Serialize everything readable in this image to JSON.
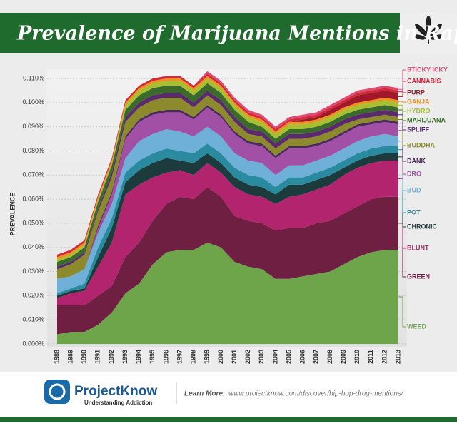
{
  "chart_data": {
    "type": "stacked-area",
    "title": "Prevalence of Marijuana Mentions in Rap Music",
    "y_label": "PREVALENCE",
    "categories": [
      "1988",
      "1989",
      "1990",
      "1991",
      "1992",
      "1993",
      "1994",
      "1995",
      "1996",
      "1997",
      "1998",
      "1999",
      "2000",
      "2001",
      "2002",
      "2003",
      "2004",
      "2005",
      "2006",
      "2007",
      "2008",
      "2009",
      "2010",
      "2011",
      "2012",
      "2013"
    ],
    "ylim": [
      0,
      0.11
    ],
    "yticks": [
      {
        "value": 0,
        "label": "0.000%"
      },
      {
        "value": 0.01,
        "label": "0.010%"
      },
      {
        "value": 0.02,
        "label": "0.020%"
      },
      {
        "value": 0.03,
        "label": "0.030%"
      },
      {
        "value": 0.04,
        "label": "0.040%"
      },
      {
        "value": 0.05,
        "label": "0.050%"
      },
      {
        "value": 0.06,
        "label": "0.060%"
      },
      {
        "value": 0.07,
        "label": "0.070%"
      },
      {
        "value": 0.08,
        "label": "0.080%"
      },
      {
        "value": 0.09,
        "label": "0.090%"
      },
      {
        "value": 0.1,
        "label": "0.100%"
      },
      {
        "value": 0.11,
        "label": "0.110%"
      }
    ],
    "grid": true,
    "series": [
      {
        "name": "WEED",
        "color": "#6fa54a",
        "values": [
          0.004,
          0.005,
          0.005,
          0.008,
          0.013,
          0.021,
          0.025,
          0.033,
          0.038,
          0.039,
          0.039,
          0.042,
          0.04,
          0.034,
          0.032,
          0.031,
          0.027,
          0.027,
          0.028,
          0.029,
          0.03,
          0.033,
          0.036,
          0.038,
          0.039,
          0.039
        ]
      },
      {
        "name": "GREEN",
        "color": "#6e1f42",
        "values": [
          0.012,
          0.011,
          0.011,
          0.012,
          0.011,
          0.015,
          0.017,
          0.018,
          0.02,
          0.022,
          0.021,
          0.023,
          0.021,
          0.019,
          0.019,
          0.019,
          0.02,
          0.021,
          0.02,
          0.021,
          0.021,
          0.021,
          0.021,
          0.022,
          0.022,
          0.022
        ]
      },
      {
        "name": "BLUNT",
        "color": "#b3246e",
        "values": [
          0.003,
          0.005,
          0.006,
          0.012,
          0.018,
          0.026,
          0.024,
          0.018,
          0.013,
          0.011,
          0.01,
          0.01,
          0.01,
          0.012,
          0.011,
          0.011,
          0.011,
          0.013,
          0.014,
          0.014,
          0.015,
          0.016,
          0.016,
          0.015,
          0.015,
          0.015
        ]
      },
      {
        "name": "CHRONIC",
        "color": "#1c3b3d",
        "values": [
          0.001,
          0.001,
          0.001,
          0.004,
          0.006,
          0.005,
          0.006,
          0.006,
          0.006,
          0.004,
          0.005,
          0.004,
          0.004,
          0.004,
          0.004,
          0.004,
          0.004,
          0.005,
          0.004,
          0.004,
          0.004,
          0.003,
          0.003,
          0.003,
          0.003,
          0.003
        ]
      },
      {
        "name": "POT",
        "color": "#2a8ba0",
        "values": [
          0.001,
          0.001,
          0.002,
          0.004,
          0.004,
          0.004,
          0.004,
          0.004,
          0.004,
          0.004,
          0.004,
          0.004,
          0.004,
          0.004,
          0.004,
          0.004,
          0.003,
          0.003,
          0.003,
          0.003,
          0.003,
          0.003,
          0.003,
          0.003,
          0.003,
          0.003
        ]
      },
      {
        "name": "BUD",
        "color": "#6eb0d8",
        "values": [
          0.006,
          0.005,
          0.006,
          0.006,
          0.006,
          0.006,
          0.008,
          0.008,
          0.008,
          0.008,
          0.007,
          0.007,
          0.007,
          0.006,
          0.006,
          0.006,
          0.005,
          0.005,
          0.005,
          0.005,
          0.005,
          0.005,
          0.005,
          0.005,
          0.005,
          0.004
        ]
      },
      {
        "name": "DRO",
        "color": "#a24fa6",
        "values": [
          0,
          0,
          0,
          0.002,
          0.004,
          0.008,
          0.008,
          0.008,
          0.007,
          0.008,
          0.007,
          0.008,
          0.008,
          0.008,
          0.007,
          0.007,
          0.007,
          0.007,
          0.007,
          0.006,
          0.006,
          0.006,
          0.006,
          0.005,
          0.005,
          0.005
        ]
      },
      {
        "name": "DANK",
        "color": "#4a2a5c",
        "values": [
          0,
          0,
          0,
          0.001,
          0.001,
          0.001,
          0.001,
          0.001,
          0.001,
          0.001,
          0.001,
          0.001,
          0.001,
          0.001,
          0.001,
          0.001,
          0.001,
          0.001,
          0.001,
          0.001,
          0.001,
          0.001,
          0.001,
          0.001,
          0.001,
          0.001
        ]
      },
      {
        "name": "BUDDHA",
        "color": "#8c8a2c",
        "values": [
          0.004,
          0.005,
          0.006,
          0.006,
          0.006,
          0.006,
          0.005,
          0.005,
          0.005,
          0.005,
          0.004,
          0.004,
          0.004,
          0.004,
          0.003,
          0.003,
          0.003,
          0.003,
          0.003,
          0.003,
          0.003,
          0.003,
          0.002,
          0.002,
          0.002,
          0.002
        ]
      },
      {
        "name": "SPLIFF",
        "color": "#5b2a6c",
        "values": [
          0.001,
          0.001,
          0.001,
          0.001,
          0.002,
          0.002,
          0.002,
          0.002,
          0.002,
          0.002,
          0.002,
          0.002,
          0.002,
          0.002,
          0.002,
          0.002,
          0.002,
          0.002,
          0.002,
          0.002,
          0.002,
          0.002,
          0.002,
          0.002,
          0.002,
          0.002
        ]
      },
      {
        "name": "MARIJUANA",
        "color": "#3b6b2a",
        "values": [
          0.002,
          0.002,
          0.002,
          0.003,
          0.003,
          0.003,
          0.003,
          0.003,
          0.003,
          0.003,
          0.003,
          0.003,
          0.003,
          0.003,
          0.003,
          0.002,
          0.002,
          0.002,
          0.002,
          0.002,
          0.002,
          0.002,
          0.002,
          0.002,
          0.002,
          0.002
        ]
      },
      {
        "name": "HYDRO",
        "color": "#a9bf32",
        "values": [
          0.001,
          0.001,
          0.001,
          0.001,
          0.001,
          0.002,
          0.002,
          0.002,
          0.002,
          0.002,
          0.002,
          0.002,
          0.002,
          0.002,
          0.002,
          0.002,
          0.002,
          0.002,
          0.002,
          0.002,
          0.002,
          0.002,
          0.002,
          0.002,
          0.002,
          0.002
        ]
      },
      {
        "name": "GANJA",
        "color": "#f0901e",
        "values": [
          0.001,
          0.001,
          0.001,
          0.001,
          0.001,
          0.001,
          0.001,
          0.001,
          0.001,
          0.001,
          0.001,
          0.001,
          0.001,
          0.001,
          0.001,
          0.001,
          0.001,
          0.001,
          0.001,
          0.001,
          0.001,
          0.001,
          0.001,
          0.001,
          0.001,
          0.001
        ]
      },
      {
        "name": "PURP",
        "color": "#a0182a",
        "values": [
          0,
          0,
          0,
          0,
          0,
          0,
          0,
          0,
          0,
          0,
          0,
          0,
          0,
          0,
          0,
          0,
          0,
          0,
          0.001,
          0.001,
          0.002,
          0.002,
          0.003,
          0.003,
          0.003,
          0.003
        ]
      },
      {
        "name": "CANNABIS",
        "color": "#d12a3a",
        "values": [
          0.001,
          0.001,
          0.001,
          0.001,
          0.001,
          0.001,
          0.001,
          0.001,
          0.001,
          0.001,
          0.001,
          0.001,
          0.001,
          0.001,
          0.001,
          0.001,
          0.001,
          0.001,
          0.001,
          0.001,
          0.001,
          0.001,
          0.001,
          0.001,
          0.001,
          0.001
        ]
      },
      {
        "name": "STICKY ICKY",
        "color": "#e04a72",
        "values": [
          0,
          0,
          0,
          0,
          0,
          0,
          0,
          0,
          0,
          0,
          0,
          0.001,
          0.001,
          0.001,
          0.001,
          0.001,
          0.001,
          0.001,
          0.001,
          0.001,
          0.001,
          0.001,
          0.001,
          0.001,
          0.001,
          0.001
        ]
      }
    ]
  },
  "footer": {
    "brand": "ProjectKnow",
    "tagline": "Understanding Addiction",
    "learn_more": "Learn More:",
    "url": "www.projectknow.com/discover/hip-hop-drug-mentions/"
  }
}
